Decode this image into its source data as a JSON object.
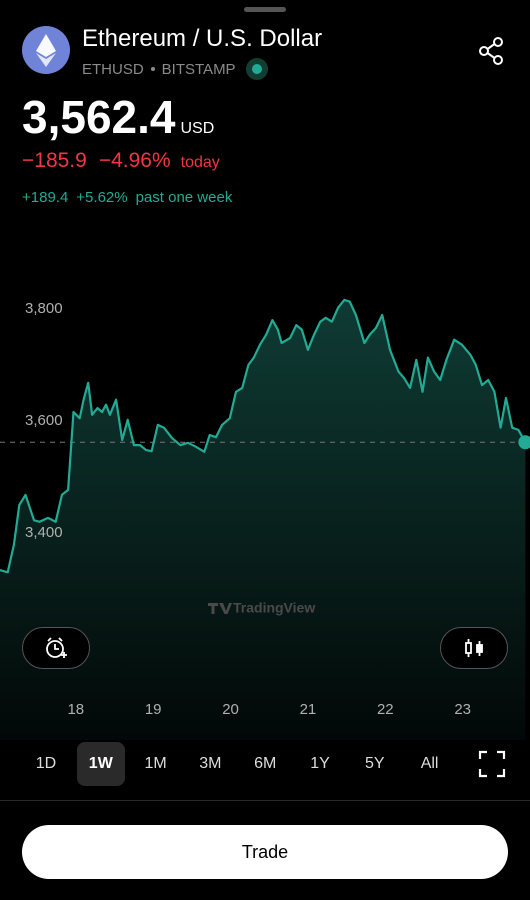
{
  "header": {
    "title": "Ethereum / U.S. Dollar",
    "symbol": "ETHUSD",
    "exchange": "BITSTAMP",
    "price": "3,562.4",
    "currency": "USD",
    "change": "−185.9",
    "change_pct": "−4.96%",
    "change_label": "today",
    "week_change": "+189.4",
    "week_pct": "+5.62%",
    "week_label": "past one week"
  },
  "watermark": "TradingView",
  "chart_data": {
    "type": "line",
    "x": [
      17.02,
      17.12,
      17.2,
      17.27,
      17.35,
      17.46,
      17.53,
      17.64,
      17.74,
      17.82,
      17.9,
      17.97,
      18.05,
      18.1,
      18.16,
      18.21,
      18.28,
      18.34,
      18.39,
      18.44,
      18.52,
      18.6,
      18.67,
      18.75,
      18.83,
      18.91,
      18.98,
      19.06,
      19.14,
      19.24,
      19.35,
      19.45,
      19.55,
      19.66,
      19.73,
      19.81,
      19.89,
      19.99,
      20.07,
      20.15,
      20.23,
      20.3,
      20.38,
      20.46,
      20.54,
      20.61,
      20.66,
      20.77,
      20.85,
      20.92,
      21.0,
      21.08,
      21.16,
      21.23,
      21.31,
      21.39,
      21.47,
      21.54,
      21.62,
      21.73,
      21.8,
      21.88,
      21.96,
      22.06,
      22.17,
      22.24,
      22.32,
      22.4,
      22.48,
      22.55,
      22.63,
      22.71,
      22.79,
      22.89,
      22.99,
      23.1,
      23.17,
      23.25,
      23.33,
      23.41,
      23.49,
      23.56,
      23.64,
      23.72,
      23.81
    ],
    "series": [
      {
        "color": "#22ab94",
        "values": [
          3334,
          3330,
          3379,
          3450,
          3468,
          3423,
          3420,
          3427,
          3420,
          3468,
          3477,
          3616,
          3605,
          3638,
          3668,
          3611,
          3623,
          3616,
          3629,
          3611,
          3638,
          3566,
          3602,
          3557,
          3557,
          3548,
          3546,
          3593,
          3588,
          3570,
          3557,
          3561,
          3554,
          3545,
          3575,
          3571,
          3593,
          3605,
          3652,
          3659,
          3700,
          3713,
          3736,
          3754,
          3780,
          3763,
          3739,
          3748,
          3771,
          3763,
          3727,
          3754,
          3777,
          3784,
          3777,
          3802,
          3816,
          3813,
          3789,
          3739,
          3754,
          3766,
          3789,
          3727,
          3688,
          3677,
          3659,
          3709,
          3652,
          3713,
          3688,
          3673,
          3709,
          3745,
          3736,
          3718,
          3700,
          3664,
          3673,
          3652,
          3588,
          3641,
          3588,
          3584,
          3562
        ]
      }
    ],
    "xlim": [
      17.02,
      23.87
    ],
    "xticks": [
      18,
      19,
      20,
      21,
      22,
      23
    ],
    "ylim": [
      3120,
      3905
    ],
    "yticks": [
      {
        "value": 3400,
        "label": "3,400"
      },
      {
        "value": 3600,
        "label": "3,600"
      },
      {
        "value": 3800,
        "label": "3,800"
      }
    ],
    "grid": false
  },
  "ranges": [
    "1D",
    "1W",
    "1M",
    "3M",
    "6M",
    "1Y",
    "5Y",
    "All"
  ],
  "selected_range_index": 1,
  "button": "Trade"
}
